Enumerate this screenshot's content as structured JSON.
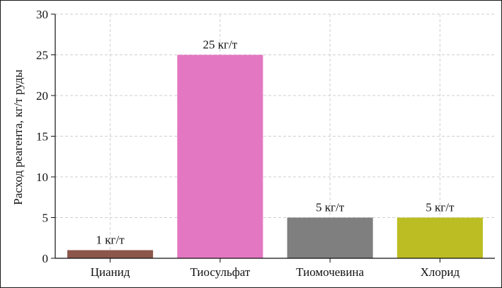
{
  "chart_data": {
    "type": "bar",
    "categories": [
      "Цианид",
      "Тиосульфат",
      "Тиомочевина",
      "Хлорид"
    ],
    "values": [
      1,
      25,
      5,
      5
    ],
    "data_labels": [
      "1 кг/т",
      "25 кг/т",
      "5 кг/т",
      "5 кг/т"
    ],
    "colors": [
      "#8c564b",
      "#e377c2",
      "#7f7f7f",
      "#bcbd22"
    ],
    "title": "",
    "xlabel": "",
    "ylabel": "Расход реагента, кг/т руды",
    "ylim": [
      0,
      30
    ],
    "yticks": [
      0,
      5,
      10,
      15,
      20,
      25,
      30
    ],
    "grid": true,
    "legend": "none"
  }
}
